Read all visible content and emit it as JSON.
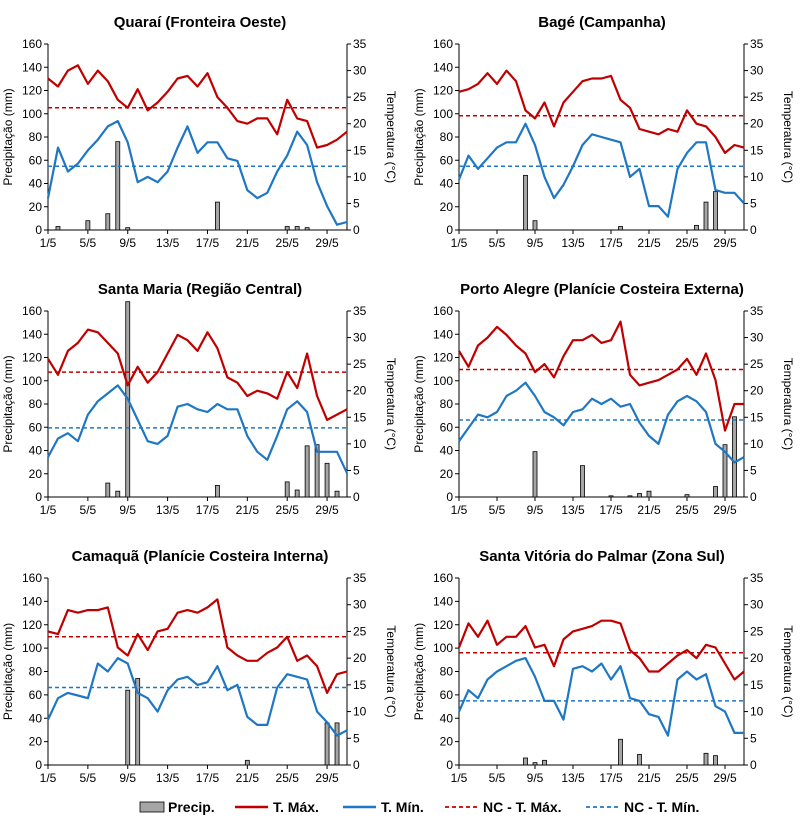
{
  "legend": {
    "precip": "Precip.",
    "tmax": "T. Máx.",
    "tmin": "T. Mín.",
    "nc_tmax": "NC - T. Máx.",
    "nc_tmin": "NC - T. Mín."
  },
  "colors": {
    "tmax": "#c00000",
    "tmin": "#1f77c4",
    "bar_fill": "#a6a6a6",
    "bar_stroke": "#000000"
  },
  "chart_data": [
    {
      "type": "bar+line",
      "title": "Quaraí (Fronteira Oeste)",
      "ylabel": "Precipitação (mm)",
      "y2label": "Temperatura (°C)",
      "ylim": [
        0,
        160
      ],
      "yticks": [
        0,
        20,
        40,
        60,
        80,
        100,
        120,
        140,
        160
      ],
      "y2lim": [
        0,
        35
      ],
      "y2ticks": [
        0,
        5,
        10,
        15,
        20,
        25,
        30,
        35
      ],
      "x": [
        1,
        2,
        3,
        4,
        5,
        6,
        7,
        8,
        9,
        10,
        11,
        12,
        13,
        14,
        15,
        16,
        17,
        18,
        19,
        20,
        21,
        22,
        23,
        24,
        25,
        26,
        27,
        28,
        29,
        30,
        31
      ],
      "xticks": [
        "1/5",
        "5/5",
        "9/5",
        "13/5",
        "17/5",
        "21/5",
        "25/5",
        "29/5"
      ],
      "precip": [
        0,
        3,
        0,
        0,
        8,
        0,
        14,
        76,
        2,
        0,
        0,
        0,
        0,
        0,
        0,
        0,
        0,
        24,
        0,
        0,
        0,
        0,
        0,
        0,
        3,
        3,
        2,
        0,
        0,
        0,
        0
      ],
      "tmax": [
        28.5,
        27.0,
        30.0,
        31.0,
        27.5,
        30.0,
        28.0,
        24.5,
        23.0,
        26.5,
        22.5,
        24.0,
        26.0,
        28.5,
        29.0,
        27.0,
        29.5,
        25.0,
        23.0,
        20.5,
        20.0,
        21.0,
        21.0,
        18.0,
        24.5,
        21.0,
        20.5,
        15.5,
        16.0,
        17.0,
        18.5
      ],
      "tmin": [
        6.0,
        15.5,
        11.0,
        12.5,
        15.0,
        17.0,
        19.5,
        20.5,
        16.5,
        9.0,
        10.0,
        9.0,
        11.0,
        15.5,
        19.5,
        14.5,
        16.5,
        16.5,
        13.5,
        13.0,
        7.5,
        6.0,
        7.0,
        11.0,
        14.0,
        18.5,
        16.0,
        9.0,
        4.5,
        1.0,
        1.5
      ],
      "nc_tmax": 23.0,
      "nc_tmin": 12.0
    },
    {
      "type": "bar+line",
      "title": "Bagé (Campanha)",
      "ylabel": "Precipitação (mm)",
      "y2label": "Temperatura (°C)",
      "ylim": [
        0,
        160
      ],
      "yticks": [
        0,
        20,
        40,
        60,
        80,
        100,
        120,
        140,
        160
      ],
      "y2lim": [
        0,
        35
      ],
      "y2ticks": [
        0,
        5,
        10,
        15,
        20,
        25,
        30,
        35
      ],
      "x": [
        1,
        2,
        3,
        4,
        5,
        6,
        7,
        8,
        9,
        10,
        11,
        12,
        13,
        14,
        15,
        16,
        17,
        18,
        19,
        20,
        21,
        22,
        23,
        24,
        25,
        26,
        27,
        28,
        29,
        30,
        31
      ],
      "xticks": [
        "1/5",
        "5/5",
        "9/5",
        "13/5",
        "17/5",
        "21/5",
        "25/5",
        "29/5"
      ],
      "precip": [
        0,
        0,
        0,
        0,
        0,
        0,
        0,
        47,
        8,
        0,
        0,
        0,
        0,
        0,
        0,
        0,
        0,
        3,
        0,
        0,
        0,
        0,
        0,
        0,
        0,
        4,
        24,
        33,
        0,
        0,
        0
      ],
      "tmax": [
        26.0,
        26.5,
        27.5,
        29.5,
        27.5,
        30.0,
        28.0,
        22.5,
        21.0,
        24.0,
        19.5,
        24.0,
        26.0,
        28.0,
        28.5,
        28.5,
        29.0,
        24.5,
        23.0,
        19.0,
        18.5,
        18.0,
        19.0,
        18.5,
        22.5,
        20.0,
        19.5,
        17.5,
        14.5,
        16.0,
        15.5
      ],
      "tmin": [
        9.5,
        14.0,
        11.5,
        13.5,
        15.5,
        16.5,
        16.5,
        20.0,
        16.0,
        10.0,
        6.0,
        8.5,
        12.0,
        16.0,
        18.0,
        17.5,
        17.0,
        16.5,
        10.0,
        11.5,
        4.5,
        4.5,
        2.5,
        11.5,
        14.5,
        16.5,
        16.5,
        7.5,
        7.0,
        7.0,
        5.0
      ],
      "nc_tmax": 21.5,
      "nc_tmin": 12.0
    },
    {
      "type": "bar+line",
      "title": "Santa Maria (Região Central)",
      "ylabel": "Precipitação (mm)",
      "y2label": "Temperatura (°C)",
      "ylim": [
        0,
        160
      ],
      "yticks": [
        0,
        20,
        40,
        60,
        80,
        100,
        120,
        140,
        160
      ],
      "y2lim": [
        0,
        35
      ],
      "y2ticks": [
        0,
        5,
        10,
        15,
        20,
        25,
        30,
        35
      ],
      "x": [
        1,
        2,
        3,
        4,
        5,
        6,
        7,
        8,
        9,
        10,
        11,
        12,
        13,
        14,
        15,
        16,
        17,
        18,
        19,
        20,
        21,
        22,
        23,
        24,
        25,
        26,
        27,
        28,
        29,
        30,
        31
      ],
      "xticks": [
        "1/5",
        "5/5",
        "9/5",
        "13/5",
        "17/5",
        "21/5",
        "25/5",
        "29/5"
      ],
      "precip": [
        0,
        0,
        0,
        0,
        0,
        0,
        12,
        5,
        168,
        0,
        0,
        0,
        0,
        0,
        0,
        0,
        0,
        10,
        0,
        0,
        0,
        0,
        0,
        0,
        13,
        6,
        44,
        45,
        29,
        5,
        0
      ],
      "tmax": [
        26.0,
        23.0,
        27.5,
        29.0,
        31.5,
        31.0,
        29.0,
        27.0,
        21.0,
        24.5,
        21.5,
        23.5,
        27.0,
        30.5,
        29.5,
        27.5,
        31.0,
        28.0,
        22.5,
        21.5,
        19.0,
        20.0,
        19.5,
        18.5,
        23.5,
        20.5,
        27.0,
        19.0,
        14.5,
        15.5,
        16.5
      ],
      "tmin": [
        7.5,
        11.0,
        12.0,
        10.5,
        15.5,
        18.0,
        19.5,
        21.0,
        18.5,
        14.5,
        10.5,
        10.0,
        11.5,
        17.0,
        17.5,
        16.5,
        16.0,
        17.5,
        16.5,
        16.5,
        11.5,
        8.5,
        7.0,
        11.5,
        16.5,
        18.0,
        16.0,
        8.5,
        8.5,
        8.5,
        4.5
      ],
      "nc_tmax": 23.5,
      "nc_tmin": 13.0
    },
    {
      "type": "bar+line",
      "title": "Porto Alegre (Planície Costeira Externa)",
      "ylabel": "Precipitação (mm)",
      "y2label": "Temperatura (°C)",
      "ylim": [
        0,
        160
      ],
      "yticks": [
        0,
        20,
        40,
        60,
        80,
        100,
        120,
        140,
        160
      ],
      "y2lim": [
        0,
        35
      ],
      "y2ticks": [
        0,
        5,
        10,
        15,
        20,
        25,
        30,
        35
      ],
      "x": [
        1,
        2,
        3,
        4,
        5,
        6,
        7,
        8,
        9,
        10,
        11,
        12,
        13,
        14,
        15,
        16,
        17,
        18,
        19,
        20,
        21,
        22,
        23,
        24,
        25,
        26,
        27,
        28,
        29,
        30,
        31
      ],
      "xticks": [
        "1/5",
        "5/5",
        "9/5",
        "13/5",
        "17/5",
        "21/5",
        "25/5",
        "29/5"
      ],
      "precip": [
        0,
        0,
        0,
        0,
        0,
        0,
        0,
        0,
        39,
        0,
        0,
        0,
        0,
        27,
        0,
        0,
        1,
        0,
        1,
        3,
        5,
        0,
        0,
        0,
        2,
        0,
        0,
        9,
        45,
        69,
        0
      ],
      "tmax": [
        27.5,
        24.5,
        28.5,
        30.0,
        32.0,
        30.5,
        28.5,
        27.0,
        23.5,
        25.0,
        22.5,
        26.5,
        29.5,
        29.5,
        30.5,
        29.0,
        29.5,
        33.0,
        23.0,
        21.0,
        21.5,
        22.0,
        23.0,
        24.0,
        26.0,
        23.0,
        27.0,
        22.0,
        12.5,
        17.5,
        17.5
      ],
      "tmin": [
        10.5,
        13.0,
        15.5,
        15.0,
        16.0,
        19.0,
        20.0,
        21.5,
        19.0,
        16.0,
        15.0,
        13.5,
        16.0,
        16.5,
        18.5,
        17.5,
        18.5,
        17.0,
        17.5,
        14.0,
        11.5,
        10.0,
        15.5,
        18.0,
        19.0,
        18.0,
        16.0,
        10.0,
        8.5,
        6.5,
        7.5
      ],
      "nc_tmax": 24.0,
      "nc_tmin": 14.5
    },
    {
      "type": "bar+line",
      "title": "Camaquã (Planície Costeira Interna)",
      "ylabel": "Precipitação (mm)",
      "y2label": "Temperatura (°C)",
      "ylim": [
        0,
        160
      ],
      "yticks": [
        0,
        20,
        40,
        60,
        80,
        100,
        120,
        140,
        160
      ],
      "y2lim": [
        0,
        35
      ],
      "y2ticks": [
        0,
        5,
        10,
        15,
        20,
        25,
        30,
        35
      ],
      "x": [
        1,
        2,
        3,
        4,
        5,
        6,
        7,
        8,
        9,
        10,
        11,
        12,
        13,
        14,
        15,
        16,
        17,
        18,
        19,
        20,
        21,
        22,
        23,
        24,
        25,
        26,
        27,
        28,
        29,
        30,
        31
      ],
      "xticks": [
        "1/5",
        "5/5",
        "9/5",
        "13/5",
        "17/5",
        "21/5",
        "25/5",
        "29/5"
      ],
      "precip": [
        0,
        0,
        0,
        0,
        0,
        0,
        0,
        0,
        64,
        74,
        0,
        0,
        0,
        0,
        0,
        0,
        0,
        0,
        0,
        0,
        4,
        0,
        0,
        0,
        0,
        0,
        0,
        0,
        36,
        36,
        0
      ],
      "tmax": [
        25.0,
        24.5,
        29.0,
        28.5,
        29.0,
        29.0,
        29.5,
        22.0,
        20.5,
        24.5,
        21.5,
        25.0,
        25.5,
        28.5,
        29.0,
        28.5,
        29.5,
        31.0,
        22.0,
        20.5,
        19.5,
        19.5,
        21.0,
        22.0,
        24.0,
        19.5,
        20.5,
        18.5,
        13.5,
        17.0,
        17.5
      ],
      "tmin": [
        8.5,
        12.5,
        13.5,
        13.0,
        12.5,
        19.0,
        17.5,
        20.0,
        19.0,
        13.5,
        12.5,
        10.0,
        14.0,
        16.0,
        16.5,
        15.0,
        15.5,
        18.5,
        14.0,
        15.0,
        9.0,
        7.5,
        7.5,
        14.5,
        17.0,
        16.5,
        16.0,
        10.0,
        8.0,
        5.5,
        6.5
      ],
      "nc_tmax": 24.0,
      "nc_tmin": 14.5
    },
    {
      "type": "bar+line",
      "title": "Santa Vitória do Palmar (Zona Sul)",
      "ylabel": "Precipitação (mm)",
      "y2label": "Temperatura (°C)",
      "ylim": [
        0,
        160
      ],
      "yticks": [
        0,
        20,
        40,
        60,
        80,
        100,
        120,
        140,
        160
      ],
      "y2lim": [
        0,
        35
      ],
      "y2ticks": [
        0,
        5,
        10,
        15,
        20,
        25,
        30,
        35
      ],
      "x": [
        1,
        2,
        3,
        4,
        5,
        6,
        7,
        8,
        9,
        10,
        11,
        12,
        13,
        14,
        15,
        16,
        17,
        18,
        19,
        20,
        21,
        22,
        23,
        24,
        25,
        26,
        27,
        28,
        29,
        30,
        31
      ],
      "xticks": [
        "1/5",
        "5/5",
        "9/5",
        "13/5",
        "17/5",
        "21/5",
        "25/5",
        "29/5"
      ],
      "precip": [
        0,
        0,
        0,
        0,
        0,
        0,
        0,
        6,
        2,
        4,
        0,
        0,
        0,
        0,
        0,
        0,
        0,
        22,
        0,
        9,
        0,
        0,
        0,
        0,
        0,
        0,
        10,
        8,
        0,
        0,
        0
      ],
      "tmax": [
        22.0,
        26.5,
        24.0,
        27.0,
        22.5,
        24.0,
        24.0,
        26.0,
        22.0,
        22.5,
        18.5,
        23.5,
        25.0,
        25.5,
        26.0,
        27.0,
        27.0,
        26.5,
        21.5,
        20.0,
        17.5,
        17.5,
        19.0,
        20.5,
        21.5,
        20.0,
        22.5,
        22.0,
        19.0,
        16.0,
        17.5
      ],
      "tmin": [
        10.0,
        14.0,
        12.5,
        16.0,
        17.5,
        18.5,
        19.5,
        20.0,
        16.5,
        12.0,
        12.0,
        8.5,
        18.0,
        18.5,
        17.5,
        19.0,
        16.0,
        18.5,
        12.5,
        12.0,
        9.5,
        9.0,
        5.5,
        16.0,
        17.5,
        16.0,
        17.0,
        11.0,
        10.0,
        6.0,
        6.0
      ],
      "nc_tmax": 21.0,
      "nc_tmin": 12.0
    }
  ]
}
